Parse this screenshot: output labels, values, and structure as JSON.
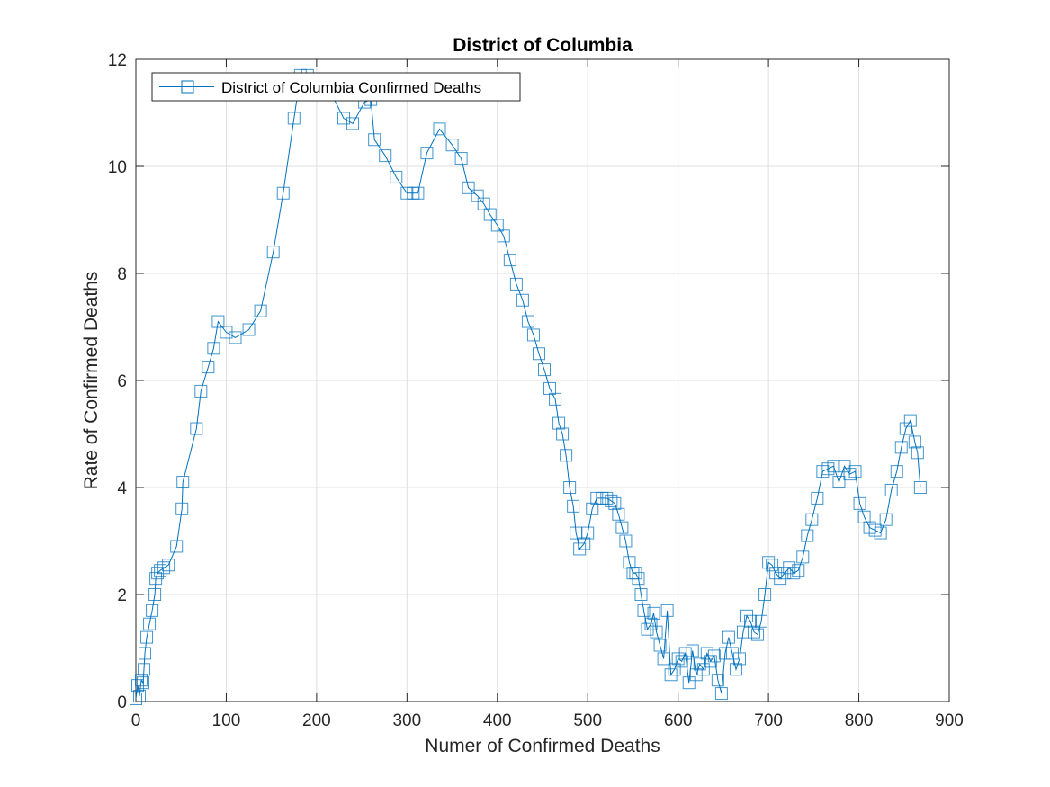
{
  "chart_data": {
    "type": "line",
    "title": "District of Columbia",
    "xlabel": "Numer of Confirmed Deaths",
    "ylabel": "Rate of Confirmed Deaths",
    "xlim": [
      0,
      900
    ],
    "ylim": [
      0,
      12
    ],
    "xticks": [
      0,
      100,
      200,
      300,
      400,
      500,
      600,
      700,
      800,
      900
    ],
    "yticks": [
      0,
      2,
      4,
      6,
      8,
      10,
      12
    ],
    "grid": true,
    "legend_position": "top-left",
    "series": [
      {
        "name": "District of Columbia Confirmed Deaths",
        "color": "#0072BD",
        "marker": "square",
        "x": [
          0,
          2,
          4,
          6,
          8,
          9,
          10,
          12,
          15,
          18,
          21,
          22,
          24,
          27,
          31,
          36,
          45,
          51,
          52,
          67,
          72,
          80,
          86,
          91,
          100,
          110,
          125,
          138,
          152,
          163,
          175,
          182,
          190,
          200,
          212,
          230,
          240,
          253,
          260,
          264,
          276,
          288,
          300,
          307,
          312,
          322,
          336,
          350,
          360,
          368,
          378,
          385,
          392,
          400,
          407,
          414,
          421,
          428,
          434,
          440,
          446,
          452,
          458,
          464,
          468,
          472,
          476,
          480,
          484,
          487,
          491,
          496,
          500,
          505,
          510,
          516,
          521,
          526,
          530,
          534,
          538,
          542,
          546,
          550,
          553,
          556,
          559,
          562,
          566,
          570,
          573,
          576,
          580,
          584,
          588,
          592,
          596,
          600,
          604,
          608,
          612,
          616,
          620,
          624,
          628,
          632,
          636,
          640,
          644,
          648,
          652,
          656,
          660,
          664,
          668,
          672,
          676,
          680,
          684,
          688,
          692,
          696,
          700,
          704,
          708,
          713,
          718,
          723,
          728,
          733,
          738,
          743,
          748,
          754,
          760,
          766,
          772,
          778,
          784,
          790,
          796,
          801,
          806,
          812,
          818,
          824,
          830,
          836,
          842,
          847,
          852,
          857,
          862,
          865,
          868
        ],
        "y": [
          0.05,
          0.3,
          0.1,
          0.4,
          0.35,
          0.6,
          0.9,
          1.2,
          1.45,
          1.7,
          2.0,
          2.3,
          2.4,
          2.45,
          2.5,
          2.55,
          2.9,
          3.6,
          4.1,
          5.1,
          5.8,
          6.25,
          6.6,
          7.1,
          6.9,
          6.8,
          6.95,
          7.3,
          8.4,
          9.5,
          10.9,
          11.7,
          11.7,
          11.6,
          11.5,
          10.9,
          10.8,
          11.2,
          11.25,
          10.5,
          10.2,
          9.8,
          9.5,
          9.5,
          9.5,
          10.25,
          10.7,
          10.4,
          10.15,
          9.6,
          9.45,
          9.3,
          9.1,
          8.9,
          8.7,
          8.25,
          7.8,
          7.5,
          7.1,
          6.85,
          6.5,
          6.2,
          5.85,
          5.65,
          5.2,
          5.0,
          4.6,
          4.0,
          3.65,
          3.15,
          2.85,
          2.95,
          3.15,
          3.6,
          3.8,
          3.8,
          3.8,
          3.75,
          3.7,
          3.5,
          3.25,
          3.0,
          2.6,
          2.4,
          2.4,
          2.3,
          2.0,
          1.7,
          1.35,
          1.45,
          1.65,
          1.3,
          1.05,
          0.8,
          1.7,
          0.5,
          0.6,
          0.8,
          0.75,
          0.9,
          0.35,
          0.95,
          0.5,
          0.7,
          0.6,
          0.9,
          0.75,
          0.85,
          0.4,
          0.15,
          0.9,
          1.2,
          0.9,
          0.6,
          0.8,
          1.3,
          1.6,
          1.5,
          1.3,
          1.25,
          1.5,
          2.0,
          2.6,
          2.55,
          2.4,
          2.3,
          2.4,
          2.5,
          2.4,
          2.45,
          2.7,
          3.1,
          3.4,
          3.8,
          4.3,
          4.35,
          4.4,
          4.1,
          4.4,
          4.25,
          4.3,
          3.7,
          3.45,
          3.25,
          3.2,
          3.15,
          3.4,
          3.95,
          4.3,
          4.75,
          5.1,
          5.25,
          4.85,
          4.65,
          4.0
        ]
      }
    ]
  }
}
